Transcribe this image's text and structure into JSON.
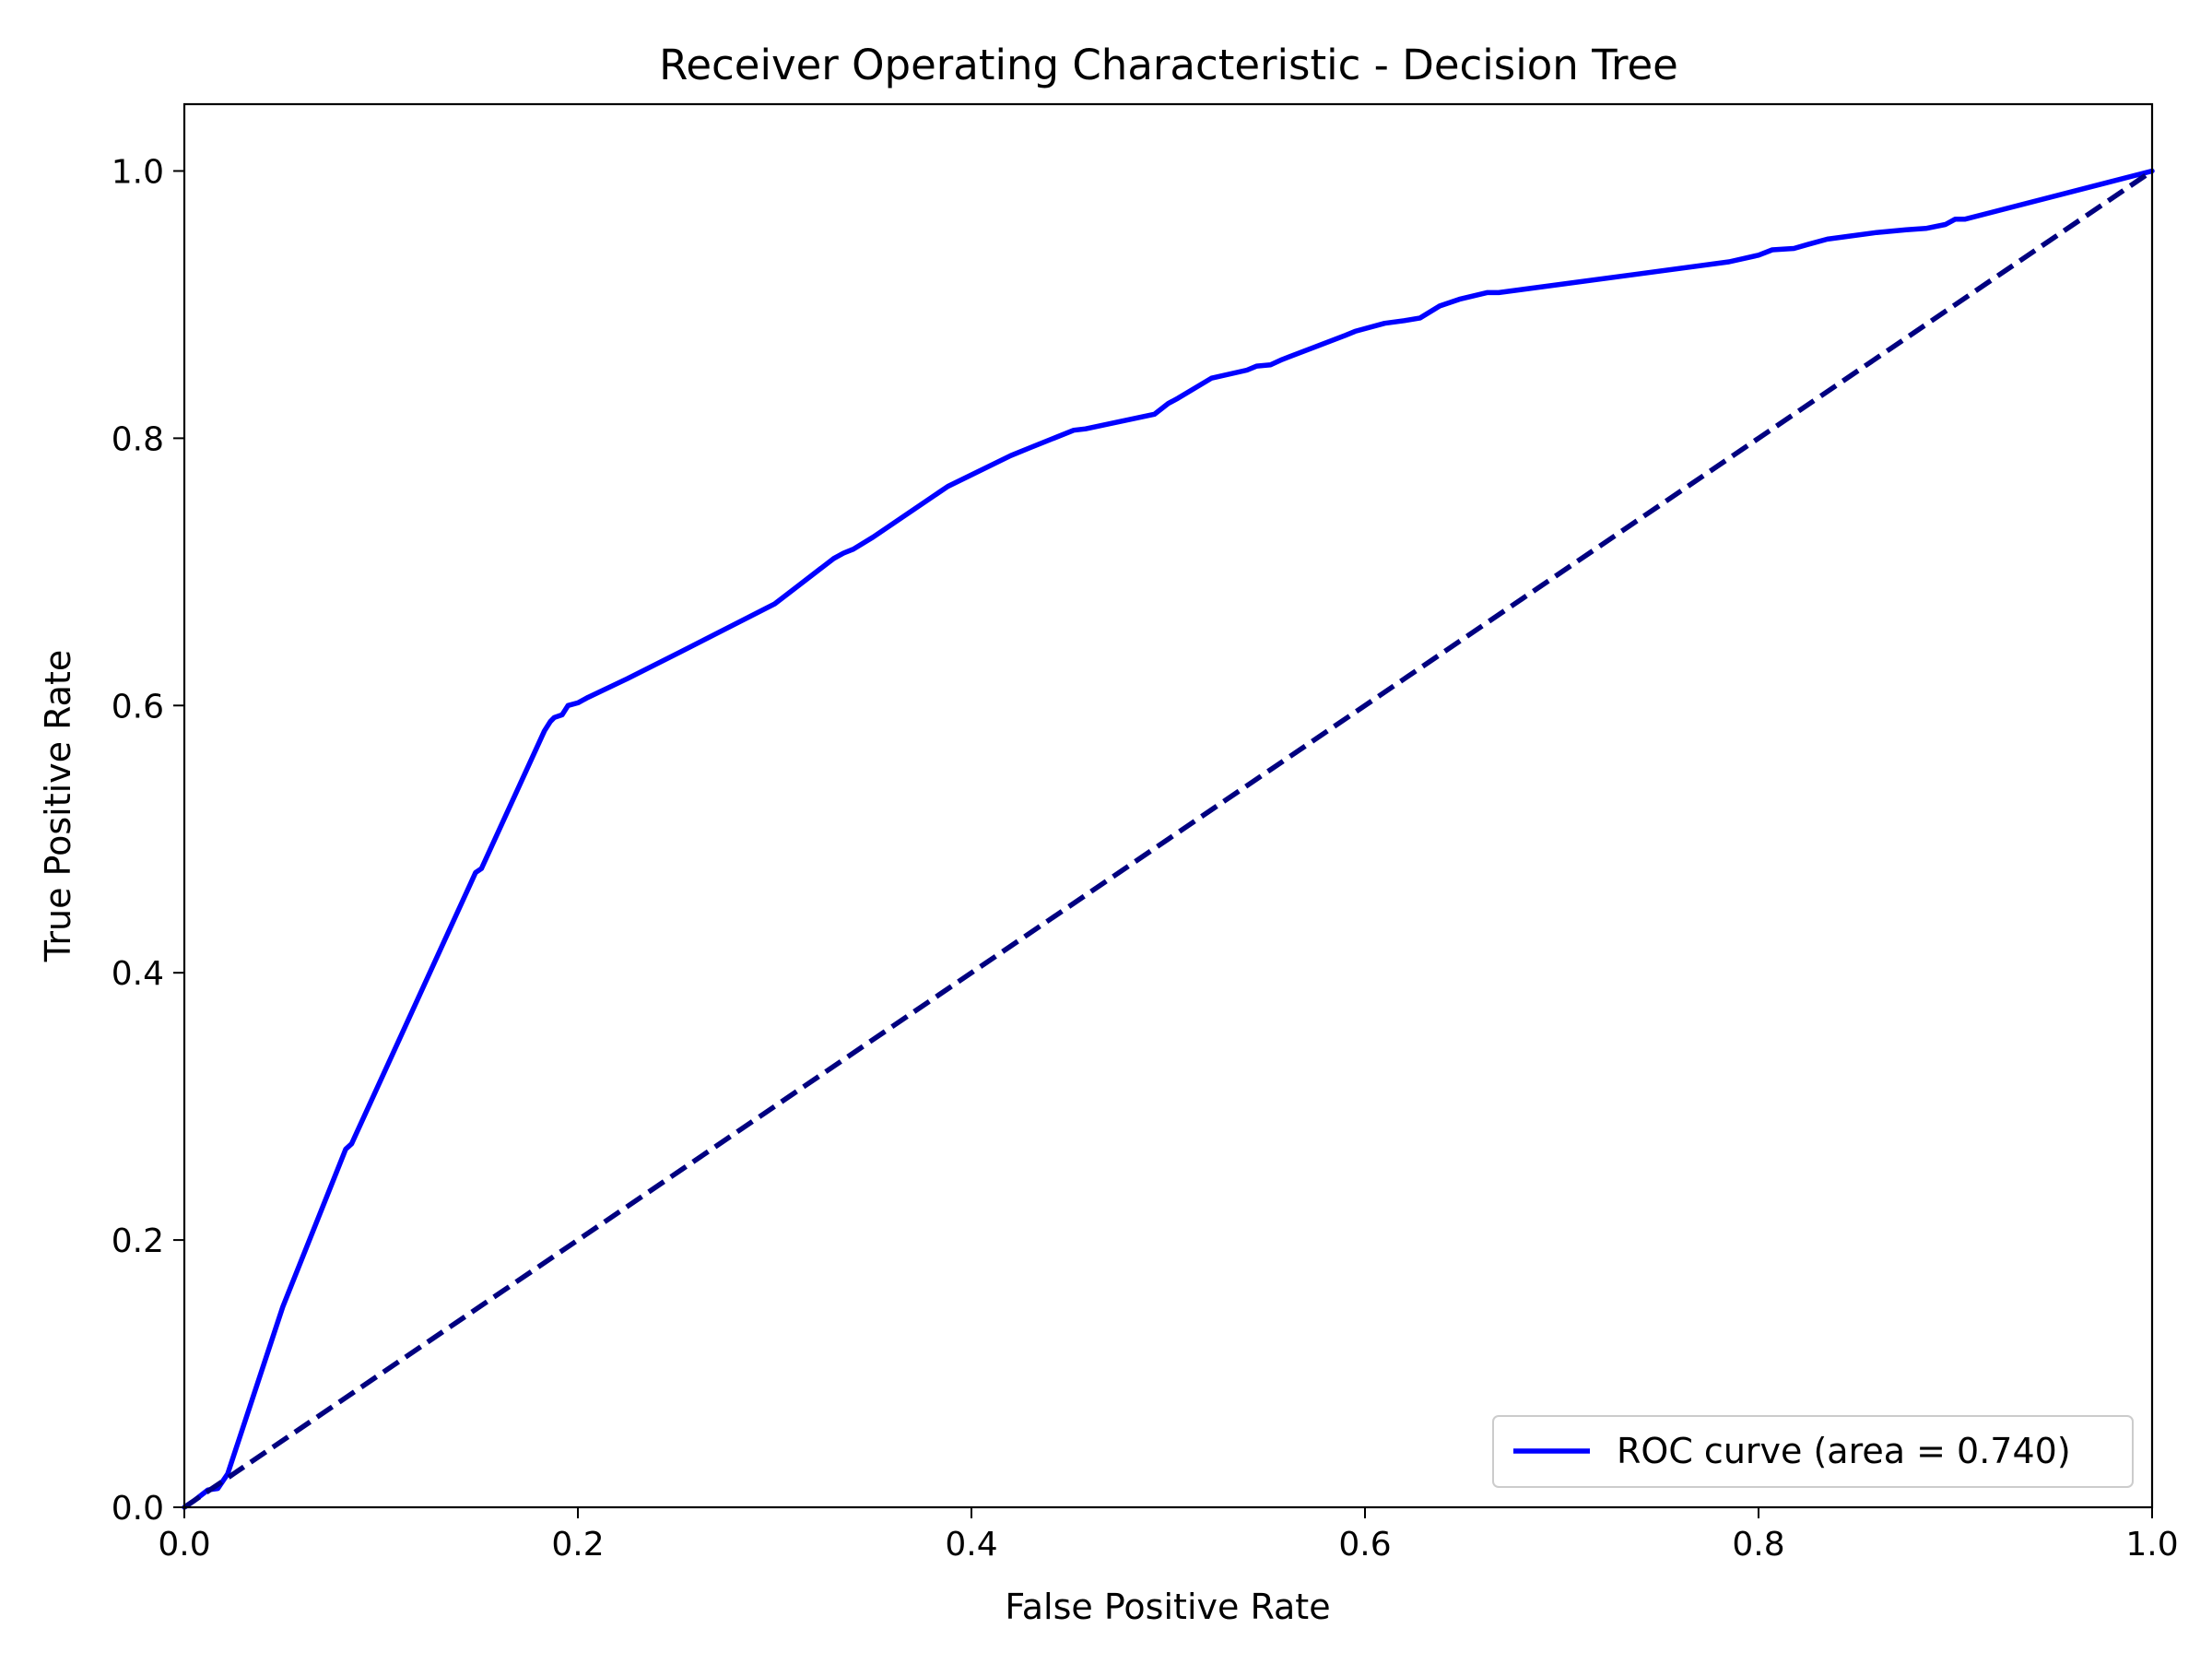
{
  "chart_data": {
    "type": "line",
    "title": "Receiver Operating Characteristic - Decision Tree",
    "xlabel": "False Positive Rate",
    "ylabel": "True Positive Rate",
    "xlim": [
      0.0,
      1.0
    ],
    "ylim": [
      0.0,
      1.05
    ],
    "x_ticks": [
      "0.0",
      "0.2",
      "0.4",
      "0.6",
      "0.8",
      "1.0"
    ],
    "y_ticks": [
      "0.0",
      "0.2",
      "0.4",
      "0.6",
      "0.8",
      "1.0"
    ],
    "x_tick_values": [
      0.0,
      0.2,
      0.4,
      0.6,
      0.8,
      1.0
    ],
    "y_tick_values": [
      0.0,
      0.2,
      0.4,
      0.6,
      0.8,
      1.0
    ],
    "grid": false,
    "legend_position": "lower-right",
    "series": [
      {
        "name": "ROC curve (area = 0.740)",
        "color": "#0000ff",
        "style": "solid",
        "x": [
          0.0,
          0.005,
          0.012,
          0.017,
          0.022,
          0.05,
          0.082,
          0.085,
          0.148,
          0.151,
          0.183,
          0.186,
          0.188,
          0.192,
          0.195,
          0.2,
          0.205,
          0.225,
          0.252,
          0.3,
          0.33,
          0.335,
          0.34,
          0.35,
          0.388,
          0.42,
          0.43,
          0.452,
          0.458,
          0.493,
          0.5,
          0.505,
          0.522,
          0.54,
          0.545,
          0.552,
          0.558,
          0.59,
          0.595,
          0.61,
          0.62,
          0.628,
          0.638,
          0.648,
          0.662,
          0.668,
          0.785,
          0.8,
          0.807,
          0.818,
          0.825,
          0.835,
          0.845,
          0.86,
          0.875,
          0.885,
          0.895,
          0.9,
          0.905,
          1.0
        ],
        "y": [
          0.0,
          0.005,
          0.013,
          0.014,
          0.025,
          0.15,
          0.268,
          0.272,
          0.475,
          0.478,
          0.581,
          0.588,
          0.591,
          0.593,
          0.6,
          0.602,
          0.606,
          0.62,
          0.64,
          0.676,
          0.71,
          0.714,
          0.717,
          0.726,
          0.764,
          0.787,
          0.793,
          0.806,
          0.807,
          0.818,
          0.826,
          0.83,
          0.845,
          0.851,
          0.854,
          0.855,
          0.859,
          0.877,
          0.88,
          0.886,
          0.888,
          0.89,
          0.899,
          0.904,
          0.909,
          0.909,
          0.932,
          0.937,
          0.941,
          0.942,
          0.945,
          0.949,
          0.951,
          0.954,
          0.956,
          0.957,
          0.96,
          0.964,
          0.964,
          1.0
        ]
      },
      {
        "name": "",
        "color": "#000080",
        "style": "dashed",
        "x": [
          0.0,
          1.0
        ],
        "y": [
          0.0,
          1.0
        ]
      }
    ],
    "legend_entries": [
      "ROC curve (area = 0.740)"
    ]
  }
}
